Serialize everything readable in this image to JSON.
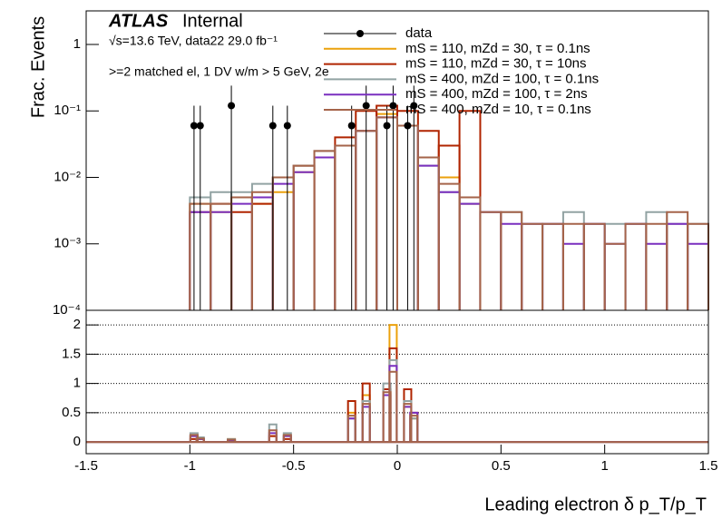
{
  "chart_data": [
    {
      "type": "histogram",
      "title": "ATLAS",
      "subtitle": "Internal",
      "annotations": [
        "√s=13.6 TeV, data22 29.0 fb⁻¹",
        ">=2 matched el, 1 DV w/m > 5 GeV, 2e"
      ],
      "y_label": "Frac. Events",
      "log_y": true,
      "xlim": [
        -1.5,
        1.5
      ],
      "xticks": [
        -1.5,
        -1,
        -0.5,
        0,
        0.5,
        1,
        1.5
      ],
      "ylim": [
        0.0001,
        3.2
      ],
      "yticks": [
        {
          "value": 0.0001,
          "label": "10⁻⁴"
        },
        {
          "value": 0.001,
          "label": "10⁻³"
        },
        {
          "value": 0.01,
          "label": "10⁻²"
        },
        {
          "value": 0.1,
          "label": "10⁻¹"
        },
        1
      ],
      "bins": [
        -1.0,
        -0.9,
        -0.8,
        -0.7,
        -0.6,
        -0.5,
        -0.4,
        -0.3,
        -0.2,
        -0.1,
        0,
        0.1,
        0.2,
        0.3,
        0.4,
        0.5,
        0.6,
        0.7,
        0.8,
        0.9,
        1.0,
        1.1,
        1.2,
        1.3,
        1.4,
        1.5
      ],
      "data_points": {
        "name": "data",
        "color": "#000000",
        "x": [
          -0.98,
          -0.95,
          -0.8,
          -0.6,
          -0.53,
          -0.22,
          -0.15,
          -0.05,
          -0.02,
          0.05,
          0.08
        ],
        "values": [
          0.06,
          0.06,
          0.12,
          0.06,
          0.06,
          0.06,
          0.12,
          0.06,
          0.12,
          0.06,
          0.12
        ],
        "errors": [
          0.06,
          0.06,
          0.12,
          0.06,
          0.06,
          0.06,
          0.12,
          0.06,
          0.12,
          0.06,
          0.12
        ]
      },
      "series": [
        {
          "name": "mS = 110, mZd = 30, τ = 0.1ns",
          "color": "#eba10c",
          "values": [
            0.004,
            0.003,
            0.005,
            0.004,
            0.006,
            0.012,
            0.02,
            0.03,
            0.05,
            0.09,
            0.06,
            0.02,
            0.01,
            0.004,
            null,
            null,
            null,
            null,
            null,
            null,
            null,
            null,
            null,
            null,
            null
          ]
        },
        {
          "name": "mS = 110, mZd = 30, τ = 10ns",
          "color": "#b02400",
          "values": [
            0.003,
            0.004,
            0.003,
            0.004,
            0.01,
            0.015,
            0.02,
            0.04,
            0.1,
            0.12,
            0.1,
            0.05,
            0.03,
            0.1,
            null,
            null,
            null,
            null,
            null,
            null,
            null,
            null,
            null,
            null,
            null
          ]
        },
        {
          "name": "mS = 400, mZd = 100, τ = 0.1ns",
          "color": "#92a3a3",
          "values": [
            0.005,
            0.006,
            0.006,
            0.008,
            0.01,
            0.015,
            0.025,
            0.03,
            0.05,
            0.08,
            0.06,
            0.015,
            0.006,
            0.004,
            0.003,
            0.003,
            0.002,
            0.002,
            0.003,
            0.002,
            0.002,
            0.002,
            0.003,
            0.002,
            0.002
          ]
        },
        {
          "name": "mS = 400, mZd = 100, τ = 2ns",
          "color": "#7a2fbf",
          "values": [
            0.003,
            0.003,
            0.004,
            0.005,
            0.008,
            0.012,
            0.02,
            0.03,
            0.05,
            0.08,
            0.06,
            0.015,
            0.006,
            0.004,
            0.003,
            0.002,
            0.002,
            0.002,
            0.001,
            0.002,
            0.001,
            0.002,
            0.001,
            0.002,
            0.001
          ]
        },
        {
          "name": "mS = 400, mZd = 10, τ = 0.1ns",
          "color": "#a5644a",
          "values": [
            0.004,
            0.004,
            0.005,
            0.006,
            0.01,
            0.015,
            0.025,
            0.03,
            0.05,
            0.08,
            0.06,
            0.02,
            0.008,
            0.005,
            0.003,
            0.003,
            0.002,
            0.002,
            0.002,
            0.002,
            0.001,
            0.002,
            0.002,
            0.003,
            0.002
          ]
        }
      ]
    },
    {
      "type": "ratio",
      "x_label": "Leading electron δ p_T/p_T",
      "xlim": [
        -1.5,
        1.5
      ],
      "xticks": [
        -1.5,
        -1,
        -0.5,
        0,
        0.5,
        1,
        1.5
      ],
      "ylim": [
        -0.2,
        2.25
      ],
      "yticks": [
        0,
        0.5,
        1,
        1.5,
        2
      ],
      "grid": true,
      "x": [
        -0.98,
        -0.95,
        -0.8,
        -0.6,
        -0.53,
        -0.22,
        -0.15,
        -0.05,
        -0.02,
        0.05,
        0.08
      ],
      "series": [
        {
          "color": "#eba10c",
          "values": [
            0.1,
            0.05,
            0.05,
            0.1,
            0.1,
            0.5,
            0.8,
            0.9,
            2.0,
            0.6,
            0.4
          ]
        },
        {
          "color": "#b02400",
          "values": [
            0.05,
            0.05,
            0.02,
            0.1,
            0.05,
            0.7,
            1.0,
            0.9,
            1.6,
            0.9,
            0.5
          ]
        },
        {
          "color": "#92a3a3",
          "values": [
            0.15,
            0.08,
            0.05,
            0.3,
            0.15,
            0.4,
            0.7,
            1.0,
            1.4,
            0.7,
            0.4
          ]
        },
        {
          "color": "#7a2fbf",
          "values": [
            0.1,
            0.05,
            0.03,
            0.15,
            0.1,
            0.4,
            0.6,
            0.8,
            1.3,
            0.6,
            0.5
          ]
        },
        {
          "color": "#a5644a",
          "values": [
            0.12,
            0.06,
            0.04,
            0.2,
            0.12,
            0.45,
            0.65,
            0.85,
            1.2,
            0.65,
            0.45
          ]
        }
      ]
    }
  ]
}
